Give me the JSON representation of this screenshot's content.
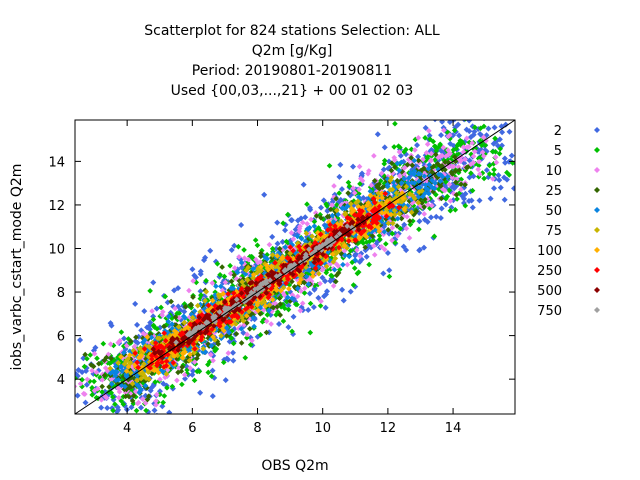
{
  "chart_data": {
    "type": "scatter",
    "title_lines": [
      "Scatterplot for  824 stations Selection: ALL",
      "Q2m [g/Kg]",
      "Period: 20190801-20190811",
      "Used {00,03,...,21} + 00 01 02 03"
    ],
    "xlabel": "OBS Q2m",
    "ylabel": "iobs_varbc_cstart_mode Q2m",
    "xlim": [
      2.4,
      15.9
    ],
    "ylim": [
      2.4,
      15.9
    ],
    "x_ticks": [
      4,
      6,
      8,
      10,
      12,
      14
    ],
    "y_ticks": [
      4,
      6,
      8,
      10,
      12,
      14
    ],
    "grid": false,
    "reference_line": "y = x",
    "legend_position": "right",
    "density_levels": [
      {
        "name": "2",
        "color": "#4169e1",
        "halfwidth": 2.6,
        "band": [
          2.9,
          15.4
        ]
      },
      {
        "name": "5",
        "color": "#00c000",
        "halfwidth": 2.1,
        "band": [
          3.1,
          15.0
        ]
      },
      {
        "name": "10",
        "color": "#ee82ee",
        "halfwidth": 1.75,
        "band": [
          3.3,
          14.6
        ]
      },
      {
        "name": "25",
        "color": "#336600",
        "halfwidth": 1.45,
        "band": [
          3.6,
          14.0
        ]
      },
      {
        "name": "50",
        "color": "#0a84e0",
        "halfwidth": 1.2,
        "band": [
          3.9,
          13.3
        ]
      },
      {
        "name": "75",
        "color": "#c8b400",
        "halfwidth": 0.95,
        "band": [
          4.2,
          12.5
        ]
      },
      {
        "name": "100",
        "color": "#ffb000",
        "halfwidth": 0.8,
        "band": [
          4.4,
          12.2
        ]
      },
      {
        "name": "250",
        "color": "#ff0000",
        "halfwidth": 0.62,
        "band": [
          4.6,
          11.8
        ]
      },
      {
        "name": "500",
        "color": "#8b0000",
        "halfwidth": 0.4,
        "band": [
          5.2,
          11.0
        ]
      },
      {
        "name": "750",
        "color": "#a0a0a0",
        "halfwidth": 0.18,
        "band": [
          5.8,
          10.6
        ]
      }
    ]
  }
}
